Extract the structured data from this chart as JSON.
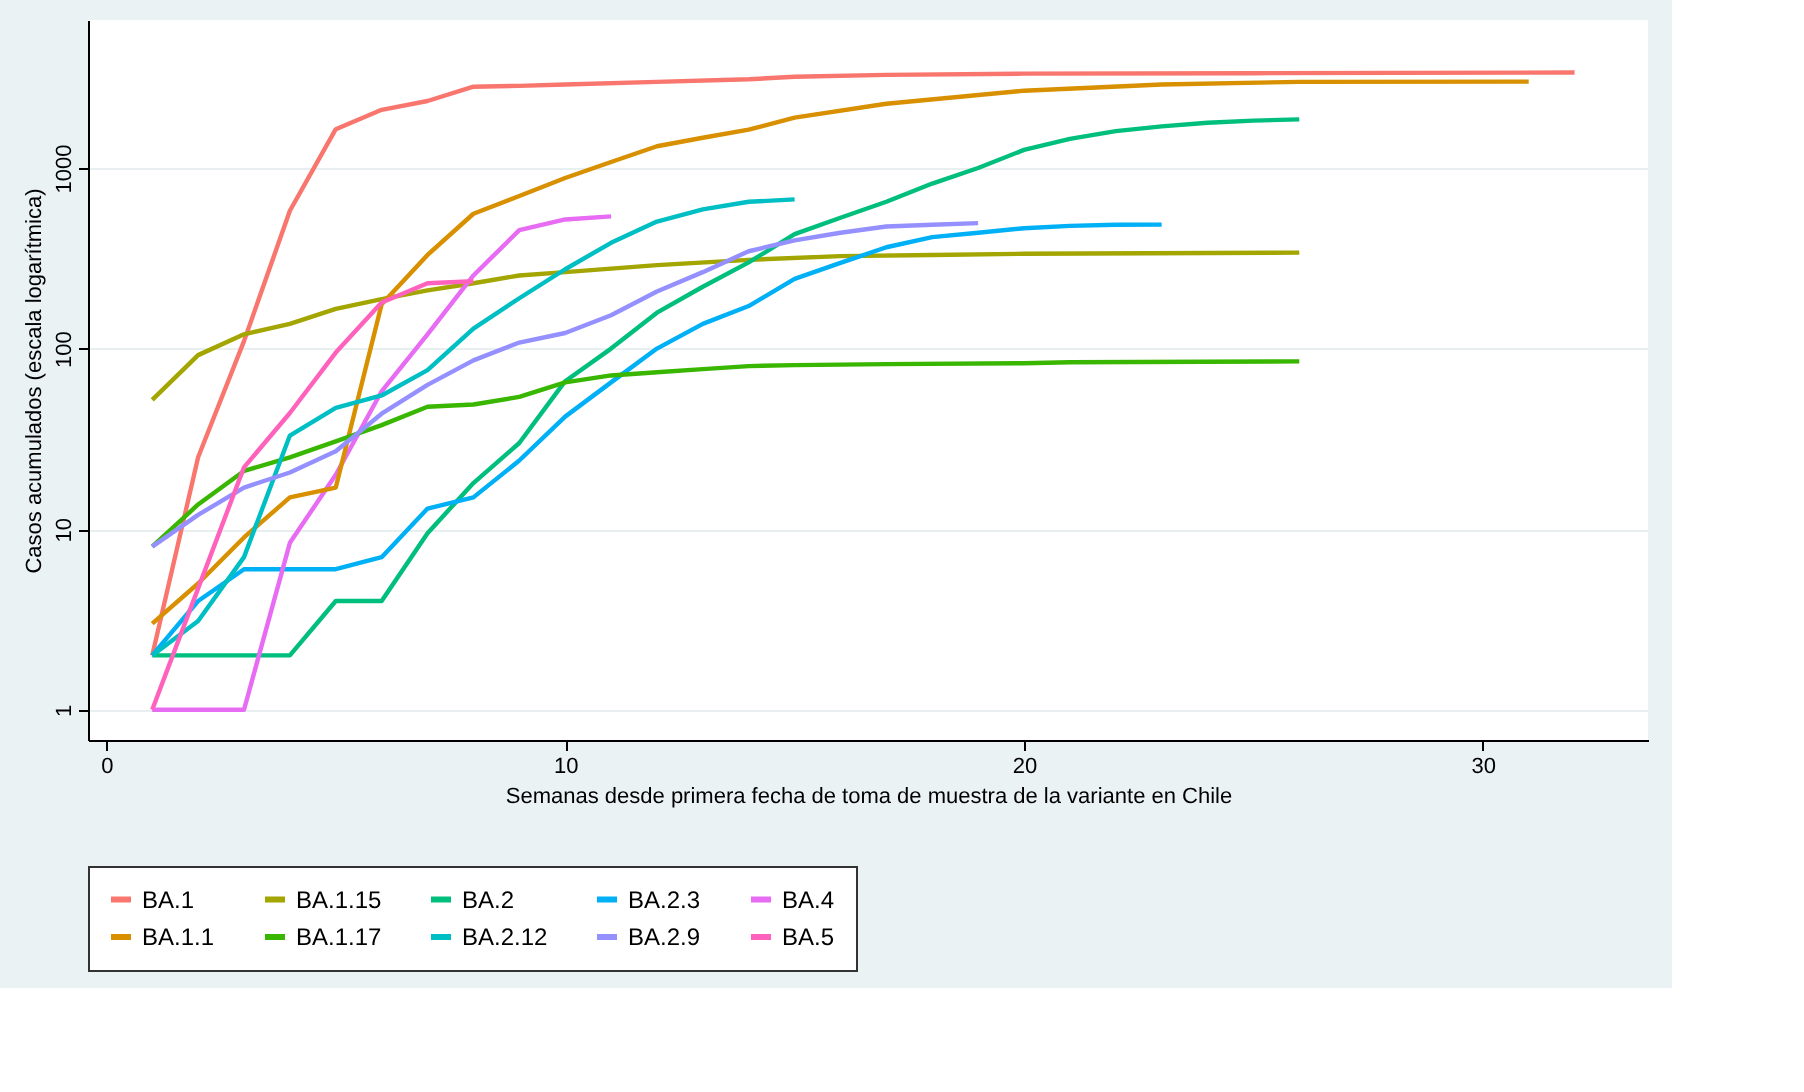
{
  "chart_data": {
    "type": "line",
    "xlabel": "Semanas desde primera fecha de toma de muestra de la variante en Chile",
    "ylabel": "Casos acumulados (escala logarítmica)",
    "log": "y",
    "xlim": [
      -0.4,
      33.6
    ],
    "xticks": [
      0,
      10,
      20,
      30
    ],
    "ylim": [
      0.68,
      6600
    ],
    "yticks": [
      1,
      10,
      100,
      1000
    ],
    "grid": "y",
    "legend": "bottom",
    "line_style": "solid",
    "marker": "none",
    "series": [
      {
        "name": "BA.1",
        "color": "#f8766d",
        "x": [
          1,
          2,
          3,
          4,
          5,
          6,
          7,
          8,
          9,
          10,
          12,
          14,
          15,
          17,
          20,
          25,
          32
        ],
        "values": [
          2,
          25,
          110,
          580,
          1640,
          2100,
          2350,
          2820,
          2850,
          2900,
          3000,
          3100,
          3200,
          3280,
          3330,
          3350,
          3380
        ]
      },
      {
        "name": "BA.1.15",
        "color": "#a3a500",
        "x": [
          1,
          2,
          3,
          4,
          5,
          6,
          7,
          8,
          9,
          10,
          11,
          12,
          14,
          16,
          18,
          20,
          26
        ],
        "values": [
          52,
          92,
          120,
          137,
          166,
          188,
          210,
          230,
          254,
          265,
          277,
          290,
          310,
          325,
          330,
          335,
          340
        ]
      },
      {
        "name": "BA.2",
        "color": "#00bf7d",
        "x": [
          1,
          2,
          3,
          4,
          5,
          6,
          7,
          8,
          9,
          10,
          11,
          12,
          13,
          14,
          15,
          16,
          17,
          18,
          19,
          20,
          21,
          22,
          23,
          24,
          25,
          26
        ],
        "values": [
          2,
          2,
          2,
          2,
          4,
          4,
          9.5,
          18,
          30,
          66,
          100,
          158,
          220,
          300,
          430,
          530,
          650,
          820,
          1000,
          1260,
          1450,
          1600,
          1700,
          1780,
          1830,
          1860
        ]
      },
      {
        "name": "BA.2.3",
        "color": "#00b0f6",
        "x": [
          1,
          2,
          3,
          4,
          5,
          6,
          7,
          8,
          9,
          10,
          11,
          12,
          13,
          14,
          15,
          16,
          17,
          18,
          19,
          20,
          21,
          22,
          23
        ],
        "values": [
          2,
          4,
          6,
          6,
          6,
          7,
          13,
          15,
          24,
          42,
          65,
          100,
          137,
          172,
          243,
          298,
          364,
          414,
          438,
          464,
          478,
          485,
          486
        ]
      },
      {
        "name": "BA.4",
        "color": "#e76bf3",
        "x": [
          1,
          2,
          3,
          4,
          5,
          6,
          7,
          8,
          9,
          10,
          11
        ],
        "values": [
          1,
          1,
          1,
          8.4,
          20,
          58,
          120,
          254,
          453,
          519,
          540
        ]
      },
      {
        "name": "BA.1.1",
        "color": "#d89000",
        "x": [
          1,
          2,
          3,
          4,
          5,
          6,
          7,
          8,
          9,
          10,
          11,
          12,
          13,
          14,
          15,
          17,
          20,
          23,
          26,
          31
        ],
        "values": [
          3,
          5,
          9,
          15,
          17,
          176,
          330,
          558,
          700,
          880,
          1080,
          1320,
          1470,
          1630,
          1900,
          2270,
          2680,
          2900,
          3000,
          3010
        ]
      },
      {
        "name": "BA.1.17",
        "color": "#39b600",
        "x": [
          1,
          2,
          3,
          4,
          5,
          6,
          7,
          8,
          9,
          10,
          11,
          12,
          13,
          14,
          15,
          17,
          20,
          21,
          26
        ],
        "values": [
          8,
          13.7,
          21,
          25,
          30.6,
          37.7,
          47.6,
          49,
          54,
          65,
          71,
          74,
          77,
          80,
          81,
          82,
          83,
          84,
          85
        ]
      },
      {
        "name": "BA.2.12",
        "color": "#00bfc4",
        "x": [
          1,
          2,
          3,
          4,
          5,
          6,
          7,
          8,
          9,
          10,
          11,
          12,
          13,
          14,
          15
        ],
        "values": [
          2,
          3.1,
          7,
          33,
          47,
          55,
          76,
          129,
          190,
          275,
          385,
          505,
          590,
          650,
          670
        ]
      },
      {
        "name": "BA.2.9",
        "color": "#9590ff",
        "x": [
          1,
          2,
          3,
          4,
          5,
          6,
          7,
          8,
          9,
          10,
          11,
          12,
          13,
          14,
          15,
          16,
          17,
          18,
          19
        ],
        "values": [
          8,
          12,
          17,
          20.6,
          27,
          43.6,
          63,
          86,
          108,
          122,
          153,
          207,
          265,
          346,
          397,
          438,
          474,
          485,
          495
        ]
      },
      {
        "name": "BA.5",
        "color": "#ff62bc",
        "x": [
          1,
          2,
          3,
          4,
          5,
          6,
          7,
          8
        ],
        "values": [
          1,
          4.7,
          22,
          44,
          95,
          180,
          230,
          236
        ]
      }
    ]
  }
}
